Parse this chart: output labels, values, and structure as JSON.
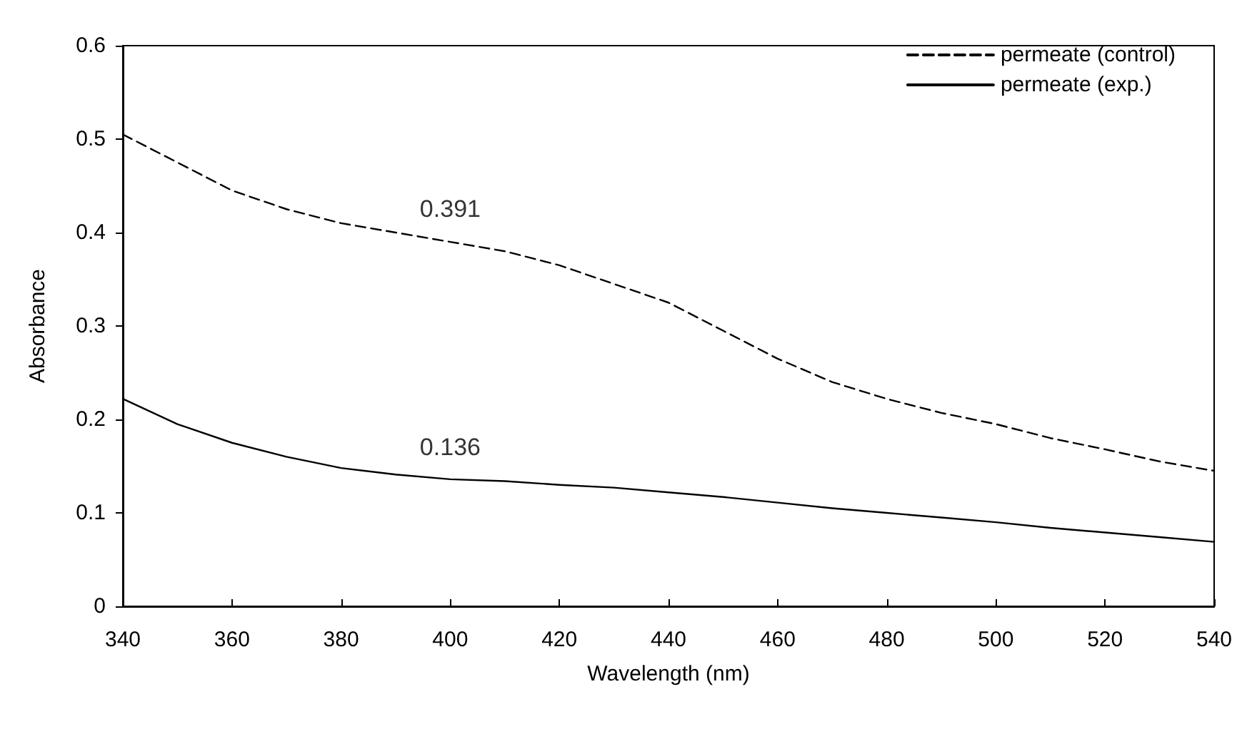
{
  "chart_data": {
    "type": "line",
    "xlabel": "Wavelength (nm)",
    "ylabel": "Absorbance",
    "x": [
      340,
      350,
      360,
      370,
      380,
      390,
      400,
      410,
      420,
      430,
      440,
      450,
      460,
      470,
      480,
      490,
      500,
      510,
      520,
      530,
      540
    ],
    "series": [
      {
        "name": "permeate (control)",
        "color": "#000000",
        "line_style": "dashed",
        "values": [
          0.505,
          0.475,
          0.445,
          0.425,
          0.41,
          0.4,
          0.39,
          0.38,
          0.365,
          0.345,
          0.325,
          0.295,
          0.265,
          0.24,
          0.222,
          0.207,
          0.195,
          0.18,
          0.168,
          0.155,
          0.145
        ]
      },
      {
        "name": "permeate (exp.)",
        "color": "#000000",
        "line_style": "solid",
        "values": [
          0.222,
          0.195,
          0.175,
          0.16,
          0.148,
          0.141,
          0.136,
          0.134,
          0.13,
          0.127,
          0.122,
          0.117,
          0.111,
          0.105,
          0.1,
          0.095,
          0.09,
          0.084,
          0.079,
          0.074,
          0.069
        ]
      }
    ],
    "annotations": [
      {
        "text": "0.391",
        "x": 400,
        "y": 0.391
      },
      {
        "text": "0.136",
        "x": 400,
        "y": 0.136
      }
    ],
    "xlim": [
      340,
      540
    ],
    "xticks": [
      340,
      360,
      380,
      400,
      420,
      440,
      460,
      480,
      500,
      520,
      540
    ],
    "ylim": [
      0,
      0.6
    ],
    "yticks": [
      0,
      0.1,
      0.2,
      0.3,
      0.4,
      0.5,
      0.6
    ],
    "grid": false,
    "legend": "top right",
    "marker": "none"
  }
}
